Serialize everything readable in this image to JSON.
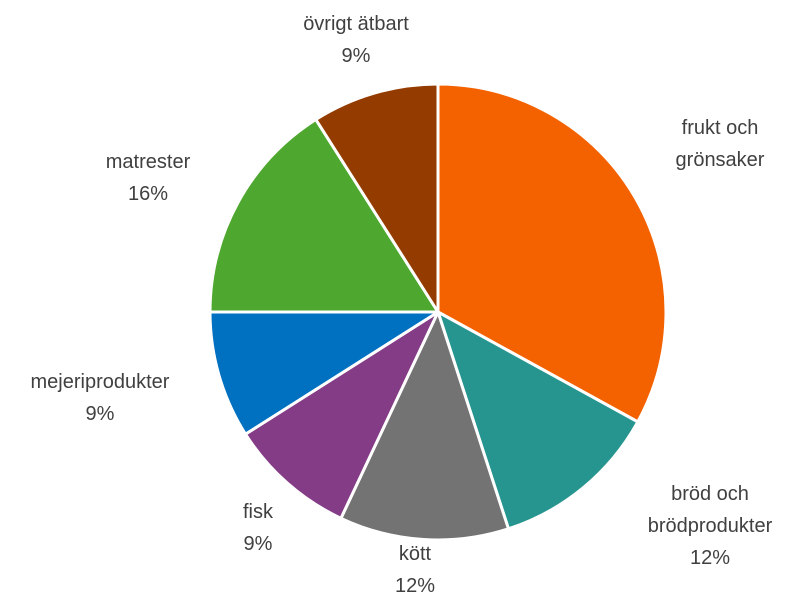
{
  "chart_data": {
    "type": "pie",
    "categories": [
      "frukt och grönsaker",
      "bröd och brödprodukter",
      "kött",
      "fisk",
      "mejeriprodukter",
      "matrester",
      "övrigt ätbart"
    ],
    "values": [
      33,
      12,
      12,
      9,
      9,
      16,
      9
    ],
    "value_labels": [
      null,
      "12%",
      "12%",
      "9%",
      "9%",
      "16%",
      "9%"
    ],
    "colors": [
      "#f46200",
      "#26958f",
      "#737373",
      "#843c87",
      "#0070c0",
      "#4ea72e",
      "#943c00"
    ]
  }
}
